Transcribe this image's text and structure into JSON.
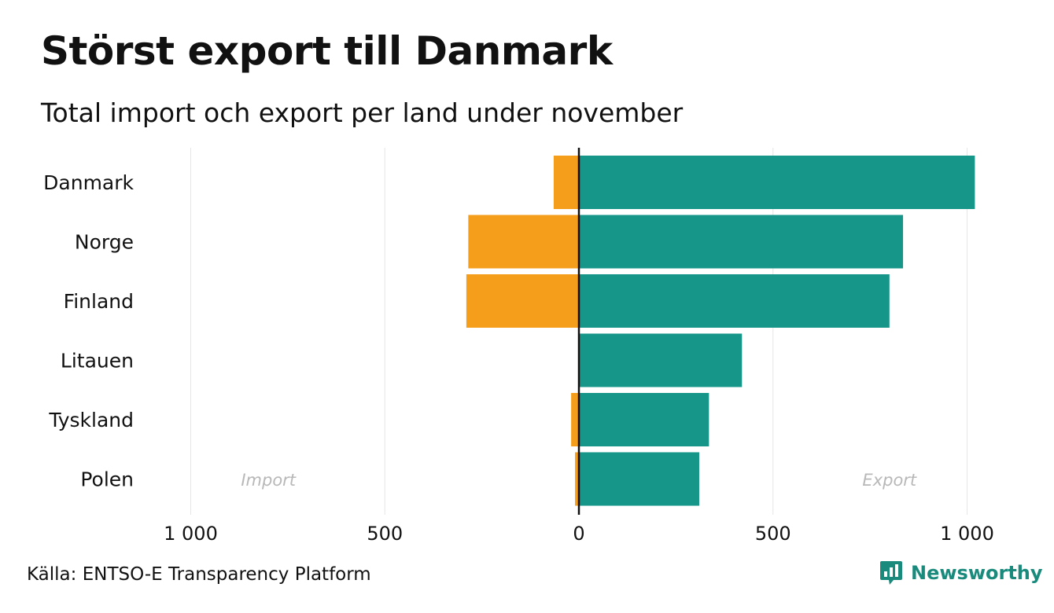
{
  "title": "Störst export till Danmark",
  "subtitle": "Total import och export per land under november",
  "source": "Källa: ENTSO-E Transparency Platform",
  "brand": {
    "name": "Newsworthy",
    "icon": "newsworthy-logo-icon"
  },
  "colors": {
    "import": "#f59e1b",
    "export": "#159688",
    "grid": "#e6e6e6",
    "axis": "#111111"
  },
  "chart_data": {
    "type": "bar",
    "orientation": "horizontal-diverging",
    "categories": [
      "Danmark",
      "Norge",
      "Finland",
      "Litauen",
      "Tyskland",
      "Polen"
    ],
    "series": [
      {
        "name": "Import",
        "values": [
          -65,
          -285,
          -290,
          0,
          -20,
          -10
        ]
      },
      {
        "name": "Export",
        "values": [
          1020,
          835,
          800,
          420,
          335,
          310
        ]
      }
    ],
    "xlim": [
      -1000,
      1000
    ],
    "xticks": [
      -1000,
      -500,
      0,
      500,
      1000
    ],
    "xtick_labels": [
      "1 000",
      "500",
      "0",
      "500",
      "1 000"
    ],
    "region_labels": {
      "left": "Import",
      "right": "Export"
    },
    "grid": true
  }
}
